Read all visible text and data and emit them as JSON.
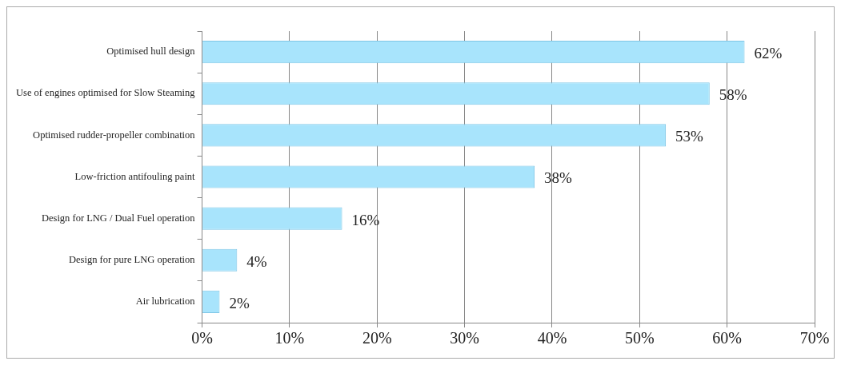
{
  "chart_data": {
    "type": "bar",
    "orientation": "horizontal",
    "categories": [
      "Optimised hull design",
      "Use of engines optimised for Slow Steaming",
      "Optimised rudder-propeller combination",
      "Low-friction antifouling paint",
      "Design for LNG / Dual Fuel operation",
      "Design for pure LNG operation",
      "Air lubrication"
    ],
    "values": [
      62,
      58,
      53,
      38,
      16,
      4,
      2
    ],
    "value_labels": [
      "62%",
      "58%",
      "53%",
      "38%",
      "16%",
      "4%",
      "2%"
    ],
    "color": "#a8e4fc",
    "xlim": [
      0,
      70
    ],
    "xticks": [
      {
        "value": 0,
        "label": "0%"
      },
      {
        "value": 10,
        "label": "10%"
      },
      {
        "value": 20,
        "label": "20%"
      },
      {
        "value": 30,
        "label": "30%"
      },
      {
        "value": 40,
        "label": "40%"
      },
      {
        "value": 50,
        "label": "50%"
      },
      {
        "value": 60,
        "label": "60%"
      },
      {
        "value": 70,
        "label": "70%"
      }
    ],
    "grid": "x",
    "legend": false
  }
}
